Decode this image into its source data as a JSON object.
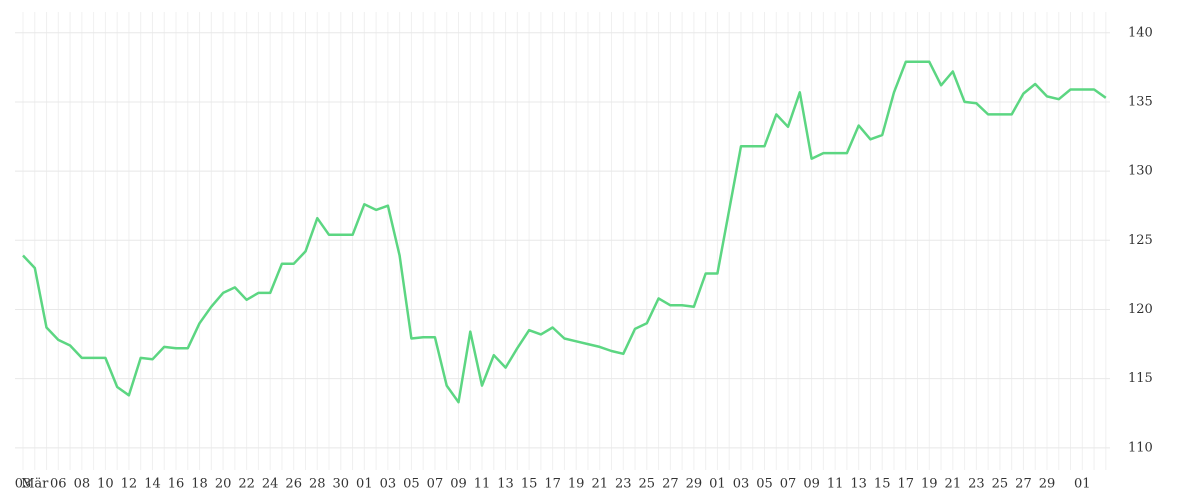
{
  "chart_data": {
    "type": "line",
    "categories": [
      "03",
      "Mär",
      null,
      "06",
      null,
      "08",
      null,
      "10",
      null,
      "12",
      null,
      "14",
      null,
      "16",
      null,
      "18",
      null,
      "20",
      null,
      "22",
      null,
      "24",
      null,
      "26",
      null,
      "28",
      null,
      "30",
      null,
      "01",
      null,
      "03",
      null,
      "05",
      null,
      "07",
      null,
      "09",
      null,
      "11",
      null,
      "13",
      null,
      "15",
      null,
      "17",
      null,
      "19",
      null,
      "21",
      null,
      "23",
      null,
      "25",
      null,
      "27",
      null,
      "29",
      null,
      "01",
      null,
      "03",
      null,
      "05",
      null,
      "07",
      null,
      "09",
      null,
      "11",
      null,
      "13",
      null,
      "15",
      null,
      "17",
      null,
      "19",
      null,
      "21",
      null,
      "23",
      null,
      "25",
      null,
      "27",
      null,
      "29",
      null,
      null,
      "01",
      null,
      null
    ],
    "series": [
      {
        "color": "#5cd682",
        "values": [
          123.9,
          123.0,
          118.7,
          117.8,
          117.4,
          116.5,
          116.5,
          116.5,
          114.4,
          113.8,
          116.5,
          116.4,
          117.3,
          117.2,
          117.2,
          119.0,
          120.2,
          121.2,
          121.6,
          120.7,
          121.2,
          121.2,
          123.3,
          123.3,
          124.2,
          126.6,
          125.4,
          125.4,
          125.4,
          127.6,
          127.2,
          127.5,
          123.9,
          117.9,
          118.0,
          118.0,
          114.5,
          113.3,
          118.4,
          114.5,
          116.7,
          115.8,
          117.2,
          118.5,
          118.2,
          118.7,
          117.9,
          117.7,
          117.5,
          117.3,
          117.0,
          116.8,
          118.6,
          119.0,
          120.8,
          120.3,
          120.3,
          120.2,
          122.6,
          122.6,
          127.2,
          131.8,
          131.8,
          131.8,
          134.1,
          133.2,
          135.7,
          130.9,
          131.3,
          131.3,
          131.3,
          133.3,
          132.3,
          132.6,
          135.7,
          137.9,
          137.9,
          137.9,
          136.2,
          137.2,
          135.0,
          134.9,
          134.1,
          134.1,
          134.1,
          135.6,
          136.3,
          135.4,
          135.2,
          135.9,
          135.9,
          135.9,
          135.3
        ]
      }
    ],
    "ylim": [
      108.4,
      141.5
    ],
    "yticks": [
      110,
      115,
      120,
      125,
      130,
      135,
      140
    ],
    "grid": true
  }
}
